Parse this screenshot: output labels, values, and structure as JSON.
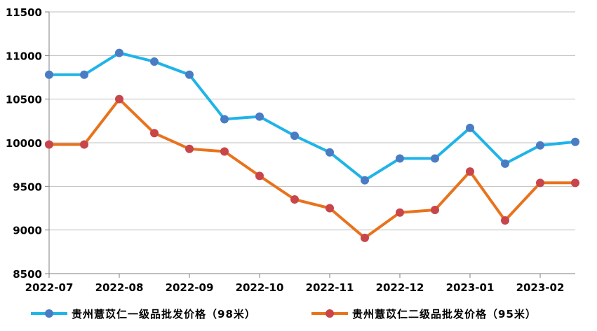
{
  "chart_data": {
    "type": "line",
    "x": [
      "2022-07",
      "",
      "2022-08",
      "",
      "2022-09",
      "",
      "2022-10",
      "",
      "2022-11",
      "",
      "2022-12",
      "",
      "2023-01",
      "",
      "2023-02",
      ""
    ],
    "xticks": [
      "2022-07",
      "2022-08",
      "2022-09",
      "2022-10",
      "2022-11",
      "2022-12",
      "2023-01",
      "2023-02"
    ],
    "yticks": [
      8500,
      9000,
      9500,
      10000,
      10500,
      11000,
      11500
    ],
    "ylim": [
      8500,
      11500
    ],
    "grid": true,
    "legend": "bottom",
    "series": [
      {
        "name": "贵州薏苡仁一级品批发价格（98米）",
        "color": "#1fb4e8",
        "marker_color": "#4a7cc4",
        "values": [
          10780,
          10780,
          11030,
          10930,
          10780,
          10270,
          10300,
          10080,
          9890,
          9570,
          9820,
          9820,
          10170,
          9760,
          9970,
          10010
        ]
      },
      {
        "name": "贵州薏苡仁二级品批发价格（95米）",
        "color": "#e8731d",
        "marker_color": "#c8454a",
        "values": [
          9980,
          9980,
          10500,
          10110,
          9930,
          9900,
          9620,
          9350,
          9250,
          8910,
          9200,
          9230,
          9670,
          9110,
          9540,
          9540
        ]
      }
    ]
  }
}
